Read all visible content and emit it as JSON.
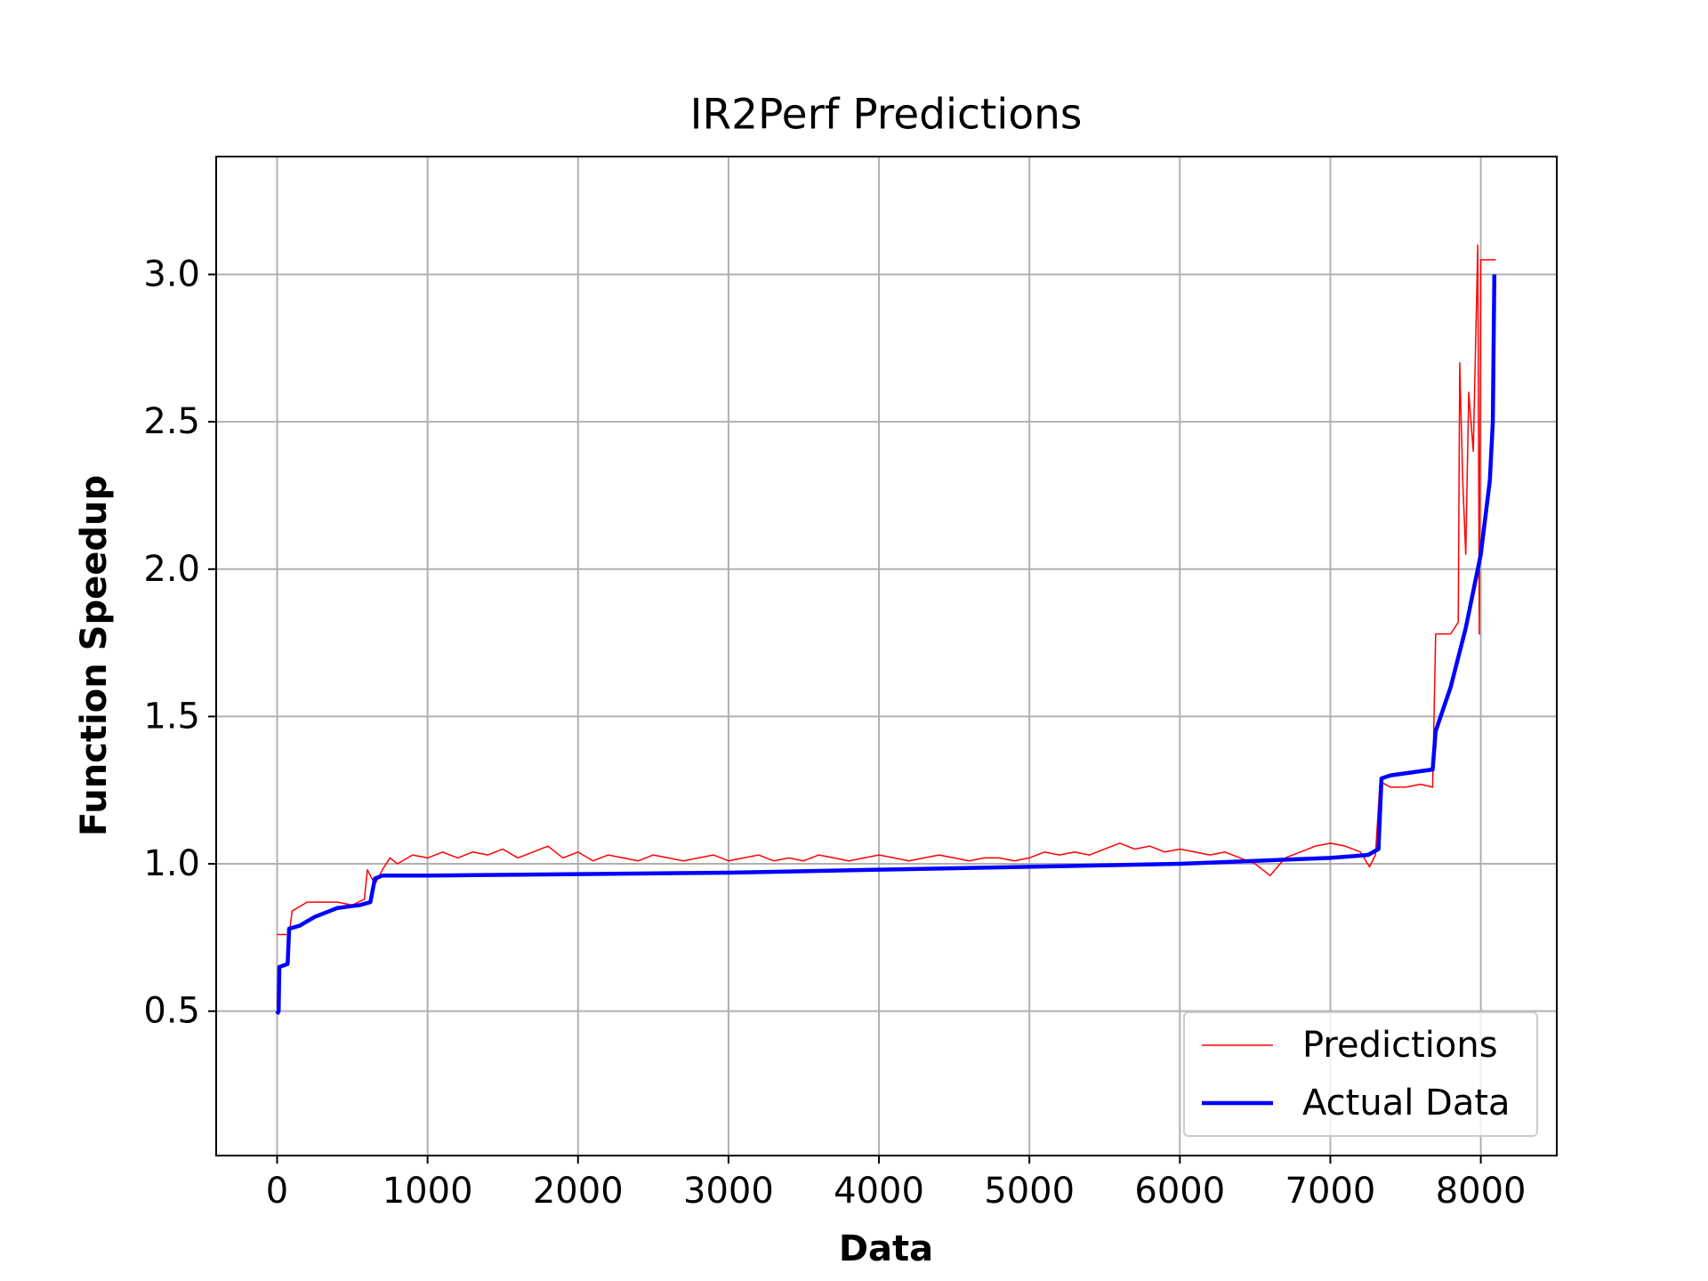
{
  "chart_data": {
    "type": "line",
    "title": "IR2Perf Predictions",
    "x_label": "Data",
    "y_label": "Function Speedup",
    "xlim": [
      -405,
      8505
    ],
    "ylim": [
      0.01,
      3.4
    ],
    "xticks": [
      0,
      1000,
      2000,
      3000,
      4000,
      5000,
      6000,
      7000,
      8000
    ],
    "yticks": [
      0.5,
      {
        "value": 1,
        "label": "1.0"
      },
      1.5,
      {
        "value": 2,
        "label": "2.0"
      },
      2.5,
      {
        "value": 3,
        "label": "3.0"
      }
    ],
    "grid": true,
    "legend": "lower right",
    "series": [
      {
        "name": "Predictions",
        "color": "#ff0000",
        "x": [
          0,
          80,
          100,
          200,
          400,
          500,
          580,
          600,
          650,
          700,
          750,
          800,
          900,
          1000,
          1100,
          1200,
          1300,
          1400,
          1500,
          1600,
          1700,
          1800,
          1900,
          2000,
          2100,
          2200,
          2300,
          2400,
          2500,
          2600,
          2700,
          2800,
          2900,
          3000,
          3100,
          3200,
          3300,
          3400,
          3500,
          3600,
          3700,
          3800,
          3900,
          4000,
          4100,
          4200,
          4300,
          4400,
          4500,
          4600,
          4700,
          4800,
          4900,
          5000,
          5100,
          5200,
          5300,
          5400,
          5500,
          5600,
          5700,
          5800,
          5900,
          6000,
          6100,
          6200,
          6300,
          6400,
          6500,
          6600,
          6700,
          6800,
          6900,
          7000,
          7100,
          7200,
          7260,
          7300,
          7330,
          7400,
          7500,
          7600,
          7680,
          7700,
          7800,
          7850,
          7860,
          7880,
          7900,
          7920,
          7950,
          7980,
          7990,
          8000,
          8100
        ],
        "values": [
          0.76,
          0.76,
          0.84,
          0.87,
          0.87,
          0.86,
          0.88,
          0.98,
          0.93,
          0.98,
          1.02,
          1.0,
          1.03,
          1.02,
          1.04,
          1.02,
          1.04,
          1.03,
          1.05,
          1.02,
          1.04,
          1.06,
          1.02,
          1.04,
          1.01,
          1.03,
          1.02,
          1.01,
          1.03,
          1.02,
          1.01,
          1.02,
          1.03,
          1.01,
          1.02,
          1.03,
          1.01,
          1.02,
          1.01,
          1.03,
          1.02,
          1.01,
          1.02,
          1.03,
          1.02,
          1.01,
          1.02,
          1.03,
          1.02,
          1.01,
          1.02,
          1.02,
          1.01,
          1.02,
          1.04,
          1.03,
          1.04,
          1.03,
          1.05,
          1.07,
          1.05,
          1.06,
          1.04,
          1.05,
          1.04,
          1.03,
          1.04,
          1.02,
          1.0,
          0.96,
          1.02,
          1.04,
          1.06,
          1.07,
          1.06,
          1.04,
          0.99,
          1.03,
          1.28,
          1.26,
          1.26,
          1.27,
          1.26,
          1.78,
          1.78,
          1.82,
          2.7,
          2.3,
          2.05,
          2.6,
          2.4,
          3.1,
          1.78,
          3.05,
          3.05
        ]
      },
      {
        "name": "Actual Data",
        "color": "#0000ff",
        "x": [
          0,
          10,
          15,
          70,
          80,
          150,
          250,
          350,
          400,
          550,
          620,
          650,
          700,
          1000,
          2000,
          3000,
          4000,
          5000,
          6000,
          7000,
          7250,
          7320,
          7340,
          7400,
          7680,
          7700,
          7800,
          7900,
          8000,
          8060,
          8080,
          8090
        ],
        "values": [
          0.49,
          0.5,
          0.65,
          0.66,
          0.78,
          0.79,
          0.82,
          0.84,
          0.85,
          0.86,
          0.87,
          0.95,
          0.96,
          0.96,
          0.965,
          0.97,
          0.98,
          0.99,
          1.0,
          1.02,
          1.03,
          1.05,
          1.29,
          1.3,
          1.32,
          1.45,
          1.6,
          1.8,
          2.05,
          2.3,
          2.5,
          3.0
        ]
      }
    ]
  }
}
